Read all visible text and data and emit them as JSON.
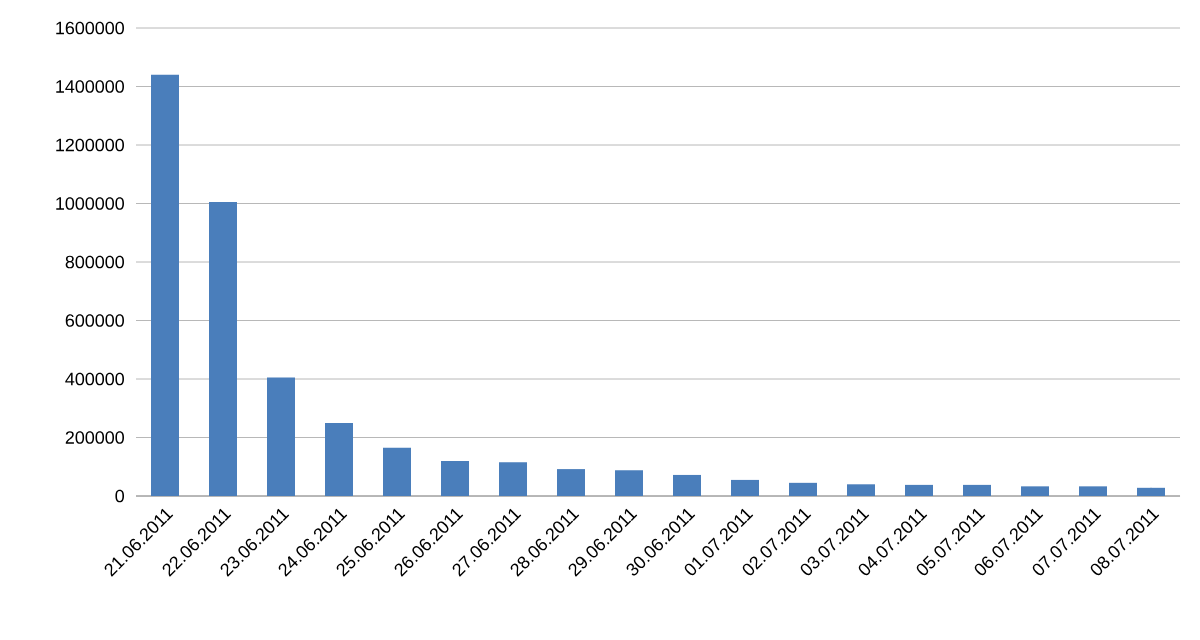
{
  "chart_data": {
    "type": "bar",
    "categories": [
      "21.06.2011",
      "22.06.2011",
      "23.06.2011",
      "24.06.2011",
      "25.06.2011",
      "26.06.2011",
      "27.06.2011",
      "28.06.2011",
      "29.06.2011",
      "30.06.2011",
      "01.07.2011",
      "02.07.2011",
      "03.07.2011",
      "04.07.2011",
      "05.07.2011",
      "06.07.2011",
      "07.07.2011",
      "08.07.2011"
    ],
    "values": [
      1440000,
      1005000,
      405000,
      250000,
      165000,
      120000,
      115000,
      92000,
      88000,
      72000,
      55000,
      45000,
      40000,
      38000,
      38000,
      33000,
      33000,
      28000
    ],
    "color": "#4a7ebb",
    "ylim": [
      0,
      1600000
    ],
    "yticks": [
      0,
      200000,
      400000,
      600000,
      800000,
      1000000,
      1200000,
      1400000,
      1600000
    ],
    "grid": "y"
  }
}
